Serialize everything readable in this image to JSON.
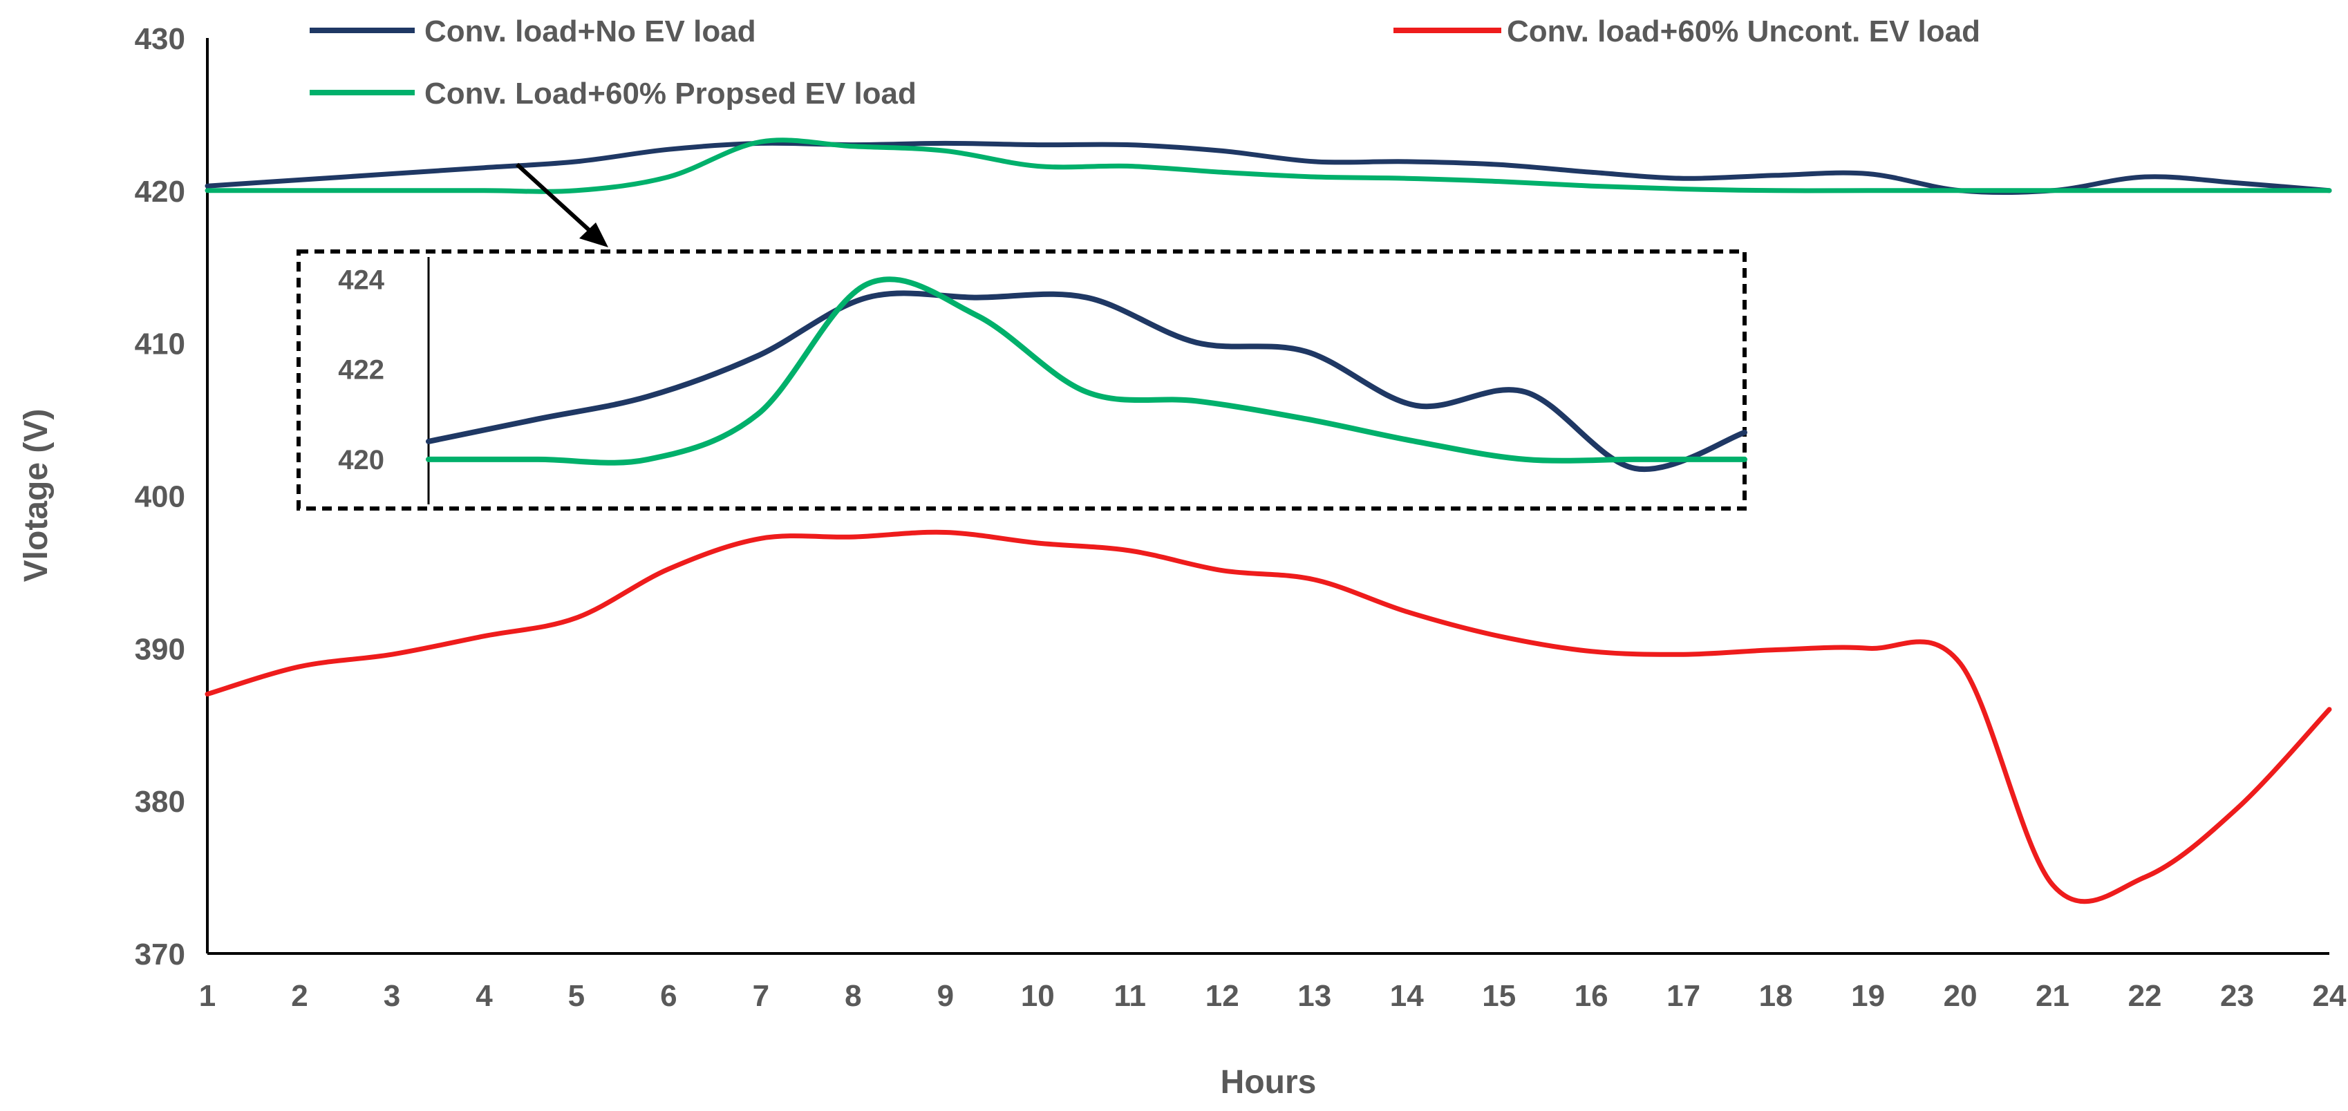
{
  "chart_data": {
    "type": "line",
    "title": "",
    "xlabel": "Hours",
    "ylabel": "Vlotage (V)",
    "x": [
      1,
      2,
      3,
      4,
      5,
      6,
      7,
      8,
      9,
      10,
      11,
      12,
      13,
      14,
      15,
      16,
      17,
      18,
      19,
      20,
      21,
      22,
      23,
      24
    ],
    "xticks": [
      "1",
      "2",
      "3",
      "4",
      "5",
      "6",
      "7",
      "8",
      "9",
      "10",
      "11",
      "12",
      "13",
      "14",
      "15",
      "16",
      "17",
      "18",
      "19",
      "20",
      "21",
      "22",
      "23",
      "24"
    ],
    "yticks": [
      "370",
      "380",
      "390",
      "400",
      "410",
      "420",
      "430"
    ],
    "ylim": [
      370,
      430
    ],
    "grid": false,
    "legend_position": "top",
    "series": [
      {
        "name": "Conv. load+No EV load",
        "color": "#1f3864",
        "values": [
          420.3,
          420.7,
          421.1,
          421.5,
          421.9,
          422.7,
          423.1,
          423.0,
          423.1,
          423.0,
          423.0,
          422.6,
          421.9,
          421.9,
          421.7,
          421.2,
          420.8,
          421.0,
          421.1,
          420.0,
          420.0,
          420.9,
          420.5,
          420.0
        ]
      },
      {
        "name": "Conv. load+60% Uncont. EV load",
        "color": "#ee1c1c",
        "values": [
          387.0,
          388.8,
          389.6,
          390.8,
          392.0,
          395.2,
          397.2,
          397.3,
          397.6,
          396.9,
          396.4,
          395.1,
          394.5,
          392.4,
          390.8,
          389.8,
          389.6,
          389.9,
          390.0,
          389.0,
          374.5,
          375.0,
          379.5,
          386.0
        ]
      },
      {
        "name": "Conv. Load+60% Propsed EV load",
        "color": "#00b06b",
        "values": [
          420.0,
          420.0,
          420.0,
          420.0,
          420.0,
          420.9,
          423.2,
          422.9,
          422.6,
          421.6,
          421.6,
          421.2,
          420.9,
          420.8,
          420.6,
          420.3,
          420.1,
          420.0,
          420.0,
          420.0,
          420.0,
          420.0,
          420.0,
          420.0
        ]
      }
    ],
    "inset": {
      "yticks": [
        "420",
        "422",
        "424"
      ],
      "ylim": [
        419,
        424.5
      ],
      "series": [
        {
          "name": "Conv. load+No EV load",
          "color": "#1f3864",
          "values": [
            420.4,
            420.9,
            421.4,
            422.3,
            423.6,
            423.6,
            423.6,
            422.6,
            422.4,
            421.2,
            421.5,
            419.8,
            420.6
          ]
        },
        {
          "name": "Conv. Load+60% Propsed EV load",
          "color": "#00b06b",
          "values": [
            420.0,
            420.0,
            420.0,
            421.0,
            423.9,
            423.2,
            421.5,
            421.3,
            420.9,
            420.4,
            420.0,
            420.0,
            420.0
          ]
        }
      ]
    }
  }
}
